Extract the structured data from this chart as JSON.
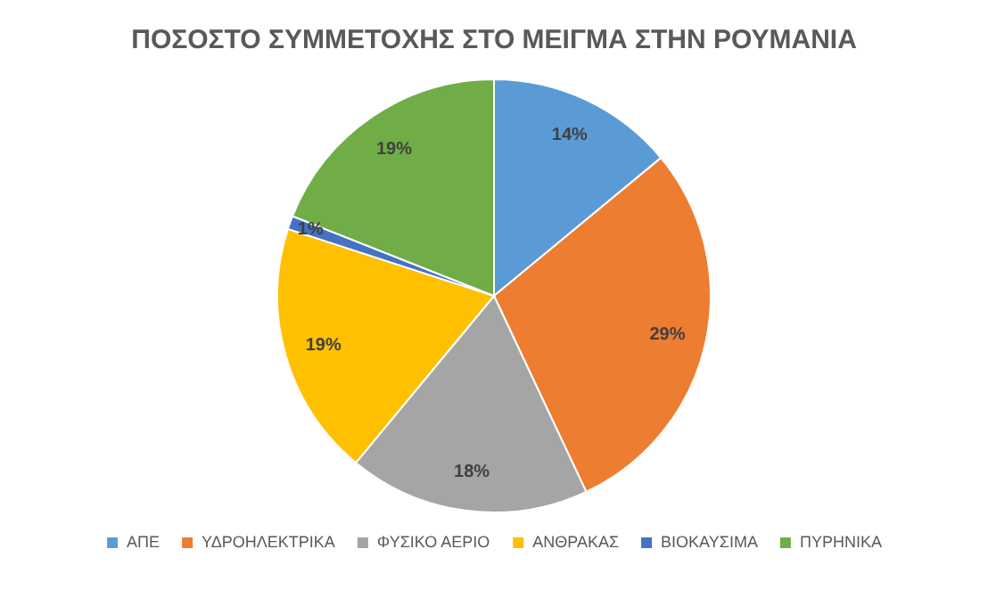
{
  "chart_data": {
    "type": "pie",
    "title": "ΠΟΣΟΣΤΟ ΣΥΜΜΕΤΟΧΗΣ ΣΤΟ ΜΕΙΓΜΑ ΣΤΗΝ ΡΟΥΜΑΝΙΑ",
    "categories": [
      "ΑΠΕ",
      "ΥΔΡΟΗΛΕΚΤΡΙΚΑ",
      "ΦΥΣΙΚΟ ΑΕΡΙΟ",
      "ΑΝΘΡΑΚΑΣ",
      "ΒΙΟΚΑΥΣΙΜΑ",
      "ΠΥΡΗΝΙΚΑ"
    ],
    "values": [
      14,
      29,
      18,
      19,
      1,
      19
    ],
    "value_labels": [
      "14%",
      "29%",
      "18%",
      "19%",
      "1%",
      "19%"
    ],
    "colors": [
      "#5b9bd5",
      "#ed7d31",
      "#a5a5a5",
      "#ffc000",
      "#4472c4",
      "#70ad47"
    ],
    "legend": "bottom"
  }
}
